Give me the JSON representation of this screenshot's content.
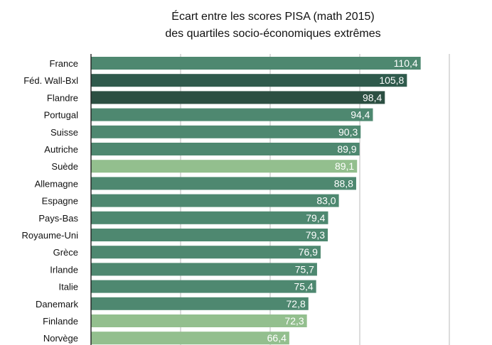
{
  "chart_data": {
    "type": "bar",
    "orientation": "horizontal",
    "title": "Écart entre les scores PISA (math 2015)",
    "subtitle": "des quartiles socio-économiques extrêmes",
    "xlabel": "",
    "ylabel": "",
    "xlim": [
      0,
      125
    ],
    "grid": true,
    "decimal_separator": ",",
    "categories": [
      "France",
      "Féd. Wall-Bxl",
      "Flandre",
      "Portugal",
      "Suisse",
      "Autriche",
      "Suède",
      "Allemagne",
      "Espagne",
      "Pays-Bas",
      "Royaume-Uni",
      "Grèce",
      "Irlande",
      "Italie",
      "Danemark",
      "Finlande",
      "Norvège"
    ],
    "values": [
      110.4,
      105.8,
      98.4,
      94.4,
      90.3,
      89.9,
      89.1,
      88.8,
      83.0,
      79.4,
      79.3,
      76.9,
      75.7,
      75.4,
      72.8,
      72.3,
      66.4
    ],
    "value_labels": [
      "110,4",
      "105,8",
      "98,4",
      "94,4",
      "90,3",
      "89,9",
      "89,1",
      "88,8",
      "83,0",
      "79,4",
      "79,3",
      "76,9",
      "75,7",
      "75,4",
      "72,8",
      "72,3",
      "66,4"
    ],
    "bar_colors": [
      "#4e8870",
      "#2f5a4c",
      "#2c4f42",
      "#4e8870",
      "#4e8870",
      "#4e8870",
      "#93bf8e",
      "#4e8870",
      "#4e8870",
      "#4e8870",
      "#4e8870",
      "#4e8870",
      "#4e8870",
      "#4e8870",
      "#4e8870",
      "#93bf8e",
      "#93bf8e"
    ]
  }
}
